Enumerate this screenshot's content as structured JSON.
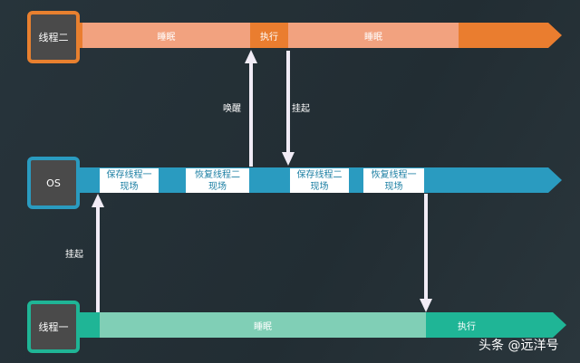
{
  "thread2": {
    "label": "线程二",
    "segments": [
      "睡眠",
      "执行",
      "睡眠"
    ],
    "color": "#ea7d2f",
    "light": "#f2a27f"
  },
  "os": {
    "label": "OS",
    "steps": [
      "保存线程一\n现场",
      "恢复线程二\n现场",
      "保存线程二\n现场",
      "恢复线程一\n现场"
    ],
    "color": "#2a9bc0"
  },
  "thread1": {
    "label": "线程一",
    "segments": [
      "睡眠",
      "执行"
    ],
    "color": "#1fb596",
    "light": "#80cfb6"
  },
  "arrows": {
    "wake": "唤醒",
    "suspend_top": "挂起",
    "suspend_bottom": "挂起"
  },
  "watermark": "头条 @远洋号"
}
